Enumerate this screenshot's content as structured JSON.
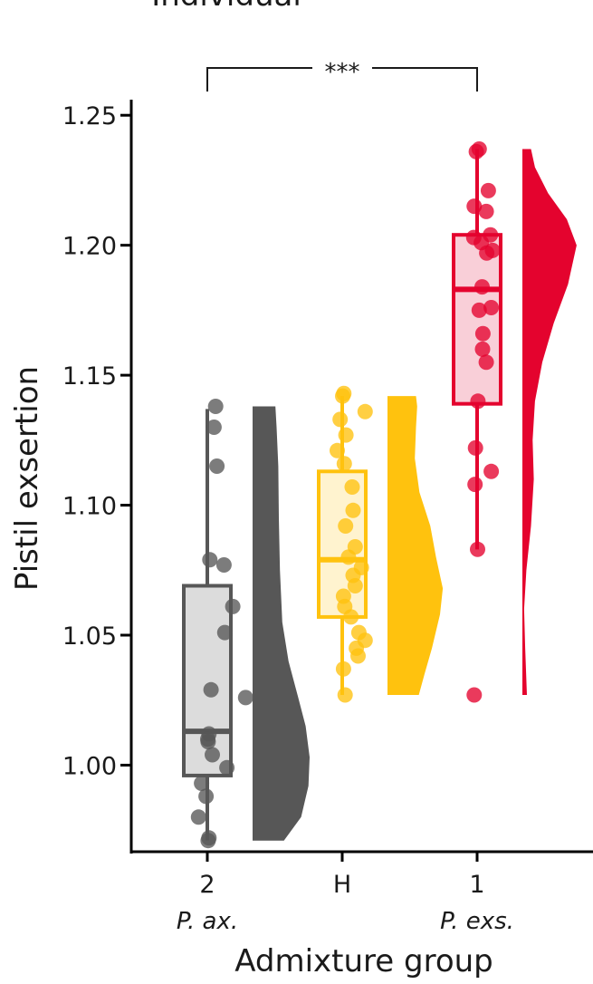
{
  "chart_data": {
    "type": "raincloud",
    "title": "Individual",
    "xlabel": "Admixture group",
    "ylabel": "Pistil exsertion",
    "ylim": [
      0.966,
      1.256
    ],
    "yticks": [
      {
        "value": 1.0,
        "label": "1.00"
      },
      {
        "value": 1.05,
        "label": "1.05"
      },
      {
        "value": 1.1,
        "label": "1.10"
      },
      {
        "value": 1.15,
        "label": "1.15"
      },
      {
        "value": 1.2,
        "label": "1.20"
      },
      {
        "value": 1.25,
        "label": "1.25"
      }
    ],
    "categories": [
      "2",
      "H",
      "1"
    ],
    "category_sublabels": [
      "P. ax.",
      "",
      "P. exs."
    ],
    "groups": [
      {
        "category": "2",
        "color": "#575757",
        "box_fill": "#dcdcdc",
        "box": {
          "min": 0.971,
          "q1": 0.996,
          "median": 1.013,
          "q3": 1.069,
          "max": 1.137
        },
        "points": [
          {
            "x": 2.0,
            "y": 1.138
          },
          {
            "x": 1.6,
            "y": 1.13
          },
          {
            "x": 2.3,
            "y": 1.115
          },
          {
            "x": 0.6,
            "y": 1.079
          },
          {
            "x": 4.0,
            "y": 1.077
          },
          {
            "x": 6.1,
            "y": 1.061
          },
          {
            "x": 4.2,
            "y": 1.051
          },
          {
            "x": 9.2,
            "y": 1.026
          },
          {
            "x": 0.9,
            "y": 1.029
          },
          {
            "x": 0.4,
            "y": 1.012
          },
          {
            "x": 0.1,
            "y": 1.01
          },
          {
            "x": 0.2,
            "y": 1.009
          },
          {
            "x": 1.2,
            "y": 1.004
          },
          {
            "x": 4.7,
            "y": 0.999
          },
          {
            "x": -1.4,
            "y": 0.993
          },
          {
            "x": -0.3,
            "y": 0.988
          },
          {
            "x": -2.1,
            "y": 0.98
          },
          {
            "x": 0.4,
            "y": 0.972
          },
          {
            "x": 0.2,
            "y": 0.971
          }
        ],
        "density": [
          {
            "y": 0.971,
            "d": 0.55
          },
          {
            "y": 0.98,
            "d": 0.85
          },
          {
            "y": 0.992,
            "d": 0.98
          },
          {
            "y": 1.003,
            "d": 1.0
          },
          {
            "y": 1.015,
            "d": 0.93
          },
          {
            "y": 1.026,
            "d": 0.8
          },
          {
            "y": 1.04,
            "d": 0.63
          },
          {
            "y": 1.055,
            "d": 0.52
          },
          {
            "y": 1.075,
            "d": 0.48
          },
          {
            "y": 1.095,
            "d": 0.46
          },
          {
            "y": 1.115,
            "d": 0.45
          },
          {
            "y": 1.13,
            "d": 0.42
          },
          {
            "y": 1.138,
            "d": 0.4
          }
        ]
      },
      {
        "category": "H",
        "color": "#ffc20e",
        "box_fill": "#fff3cf",
        "box": {
          "min": 1.027,
          "q1": 1.057,
          "median": 1.079,
          "q3": 1.113,
          "max": 1.142
        },
        "points": [
          {
            "x": 0.1,
            "y": 1.142
          },
          {
            "x": 0.4,
            "y": 1.143
          },
          {
            "x": -0.5,
            "y": 1.133
          },
          {
            "x": 5.5,
            "y": 1.136
          },
          {
            "x": 0.9,
            "y": 1.127
          },
          {
            "x": -1.2,
            "y": 1.121
          },
          {
            "x": 0.5,
            "y": 1.116
          },
          {
            "x": 2.4,
            "y": 1.107
          },
          {
            "x": 2.6,
            "y": 1.098
          },
          {
            "x": 0.8,
            "y": 1.092
          },
          {
            "x": 3.1,
            "y": 1.084
          },
          {
            "x": 1.5,
            "y": 1.08
          },
          {
            "x": 4.6,
            "y": 1.076
          },
          {
            "x": 2.6,
            "y": 1.073
          },
          {
            "x": 3.1,
            "y": 1.069
          },
          {
            "x": 0.3,
            "y": 1.065
          },
          {
            "x": 0.6,
            "y": 1.061
          },
          {
            "x": 2.1,
            "y": 1.057
          },
          {
            "x": 4.0,
            "y": 1.051
          },
          {
            "x": 5.5,
            "y": 1.048
          },
          {
            "x": 3.4,
            "y": 1.045
          },
          {
            "x": 3.8,
            "y": 1.042
          },
          {
            "x": 0.3,
            "y": 1.037
          },
          {
            "x": 0.7,
            "y": 1.027
          }
        ],
        "density": [
          {
            "y": 1.027,
            "d": 0.55
          },
          {
            "y": 1.035,
            "d": 0.65
          },
          {
            "y": 1.045,
            "d": 0.78
          },
          {
            "y": 1.058,
            "d": 0.92
          },
          {
            "y": 1.068,
            "d": 0.97
          },
          {
            "y": 1.08,
            "d": 0.85
          },
          {
            "y": 1.092,
            "d": 0.75
          },
          {
            "y": 1.105,
            "d": 0.56
          },
          {
            "y": 1.118,
            "d": 0.48
          },
          {
            "y": 1.13,
            "d": 0.5
          },
          {
            "y": 1.138,
            "d": 0.52
          },
          {
            "y": 1.142,
            "d": 0.5
          }
        ]
      },
      {
        "category": "1",
        "color": "#e4032e",
        "box_fill": "#f9cfd8",
        "box": {
          "min": 1.083,
          "q1": 1.139,
          "median": 1.183,
          "q3": 1.204,
          "max": 1.237
        },
        "points": [
          {
            "x": -0.2,
            "y": 1.236
          },
          {
            "x": 0.5,
            "y": 1.237
          },
          {
            "x": 2.7,
            "y": 1.221
          },
          {
            "x": -0.7,
            "y": 1.215
          },
          {
            "x": 2.2,
            "y": 1.213
          },
          {
            "x": -0.8,
            "y": 1.203
          },
          {
            "x": 1.0,
            "y": 1.201
          },
          {
            "x": 3.2,
            "y": 1.204
          },
          {
            "x": 3.7,
            "y": 1.198
          },
          {
            "x": 2.3,
            "y": 1.197
          },
          {
            "x": 1.2,
            "y": 1.184
          },
          {
            "x": 3.4,
            "y": 1.176
          },
          {
            "x": 0.5,
            "y": 1.175
          },
          {
            "x": 1.4,
            "y": 1.166
          },
          {
            "x": 1.3,
            "y": 1.16
          },
          {
            "x": 2.2,
            "y": 1.155
          },
          {
            "x": 0.2,
            "y": 1.14
          },
          {
            "x": -0.4,
            "y": 1.122
          },
          {
            "x": 3.4,
            "y": 1.113
          },
          {
            "x": -0.5,
            "y": 1.108
          },
          {
            "x": 0.1,
            "y": 1.083
          },
          {
            "x": -0.7,
            "y": 1.027
          }
        ],
        "density": [
          {
            "y": 1.027,
            "d": 0.08
          },
          {
            "y": 1.045,
            "d": 0.05
          },
          {
            "y": 1.06,
            "d": 0.03
          },
          {
            "y": 1.075,
            "d": 0.07
          },
          {
            "y": 1.092,
            "d": 0.15
          },
          {
            "y": 1.11,
            "d": 0.2
          },
          {
            "y": 1.125,
            "d": 0.18
          },
          {
            "y": 1.14,
            "d": 0.22
          },
          {
            "y": 1.155,
            "d": 0.35
          },
          {
            "y": 1.17,
            "d": 0.55
          },
          {
            "y": 1.185,
            "d": 0.8
          },
          {
            "y": 1.2,
            "d": 0.95
          },
          {
            "y": 1.21,
            "d": 0.78
          },
          {
            "y": 1.22,
            "d": 0.45
          },
          {
            "y": 1.23,
            "d": 0.22
          },
          {
            "y": 1.237,
            "d": 0.15
          }
        ]
      }
    ],
    "significance": {
      "from": "2",
      "to": "1",
      "label": "***"
    }
  }
}
